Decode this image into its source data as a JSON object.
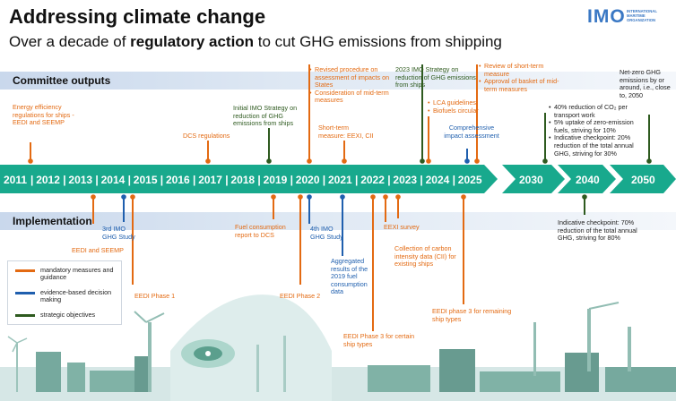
{
  "header": {
    "title": "Addressing climate change",
    "subtitle_pre": "Over a decade of ",
    "subtitle_bold": "regulatory action",
    "subtitle_post": " to cut GHG emissions from shipping"
  },
  "logo": {
    "mark": "IMO",
    "text": "INTERNATIONAL MARITIME ORGANIZATION"
  },
  "bands": {
    "committee": "Committee outputs",
    "implementation": "Implementation"
  },
  "colors": {
    "timeline": "#18a98d",
    "mandatory": "#e36a12",
    "evidence": "#1f5fae",
    "strategic": "#2e5a1f"
  },
  "timeline": {
    "years": [
      "2011",
      "2012",
      "2013",
      "2014",
      "2015",
      "2016",
      "2017",
      "2018",
      "2019",
      "2020",
      "2021",
      "2022",
      "2023",
      "2024",
      "2025"
    ],
    "milestones": [
      "2030",
      "2040",
      "2050"
    ]
  },
  "committee": [
    {
      "text": "Energy efficiency regulations for ships - EEDI and SEEMP",
      "category": "mandatory"
    },
    {
      "text": "DCS regulations",
      "category": "mandatory"
    },
    {
      "text": "Initial IMO Strategy on reduction of GHG emissions from ships",
      "category": "strategic"
    },
    {
      "bullets": [
        "Revised procedure on assessment of impacts on States",
        "Consideration of mid-term measures"
      ],
      "category": "mandatory"
    },
    {
      "text": "Short-term measure: EEXI, CII",
      "category": "mandatory"
    },
    {
      "text": "2023 IMO Strategy on reduction of GHG emissions from ships",
      "category": "strategic"
    },
    {
      "bullets": [
        "LCA guidelines",
        "Biofuels circular"
      ],
      "category": "mandatory"
    },
    {
      "text": "Comprehensive impact assessment",
      "category": "evidence"
    },
    {
      "bullets": [
        "Review of short-term measure",
        "Approval of basket of mid-term measures"
      ],
      "category": "mandatory"
    },
    {
      "bullets": [
        "40% reduction of CO₂ per transport work",
        "5% uptake of zero-emission fuels, striving for 10%",
        "Indicative checkpoint: 20% reduction of the total annual GHG, striving for 30%"
      ],
      "category": "strategic"
    },
    {
      "text": "Net-zero GHG emissions by or around, i.e., close to, 2050",
      "category": "strategic"
    }
  ],
  "implementation": [
    {
      "text": "EEDI and SEEMP",
      "category": "mandatory"
    },
    {
      "text": "3rd IMO GHG Study",
      "category": "evidence"
    },
    {
      "text": "EEDI Phase 1",
      "category": "mandatory"
    },
    {
      "text": "Fuel consumption report to DCS",
      "category": "mandatory"
    },
    {
      "text": "4th IMO GHG Study",
      "category": "evidence"
    },
    {
      "text": "EEDI Phase 2",
      "category": "mandatory"
    },
    {
      "text": "Aggregated results of the 2019 fuel consumption data",
      "category": "evidence"
    },
    {
      "text": "EEDI Phase 3 for certain ship types",
      "category": "mandatory"
    },
    {
      "text": "EEXI survey",
      "category": "mandatory"
    },
    {
      "text": "Collection of carbon intensity data (CII) for existing ships",
      "category": "mandatory"
    },
    {
      "text": "EEDI phase 3 for remaining ship types",
      "category": "mandatory"
    },
    {
      "text": "Indicative checkpoint: 70% reduction of the total annual GHG, striving for 80%",
      "category": "strategic"
    }
  ],
  "legend": [
    {
      "label": "mandatory measures and guidance",
      "color": "#e36a12"
    },
    {
      "label": "evidence-based decision making",
      "color": "#1f5fae"
    },
    {
      "label": "strategic objectives",
      "color": "#2e5a1f"
    }
  ]
}
